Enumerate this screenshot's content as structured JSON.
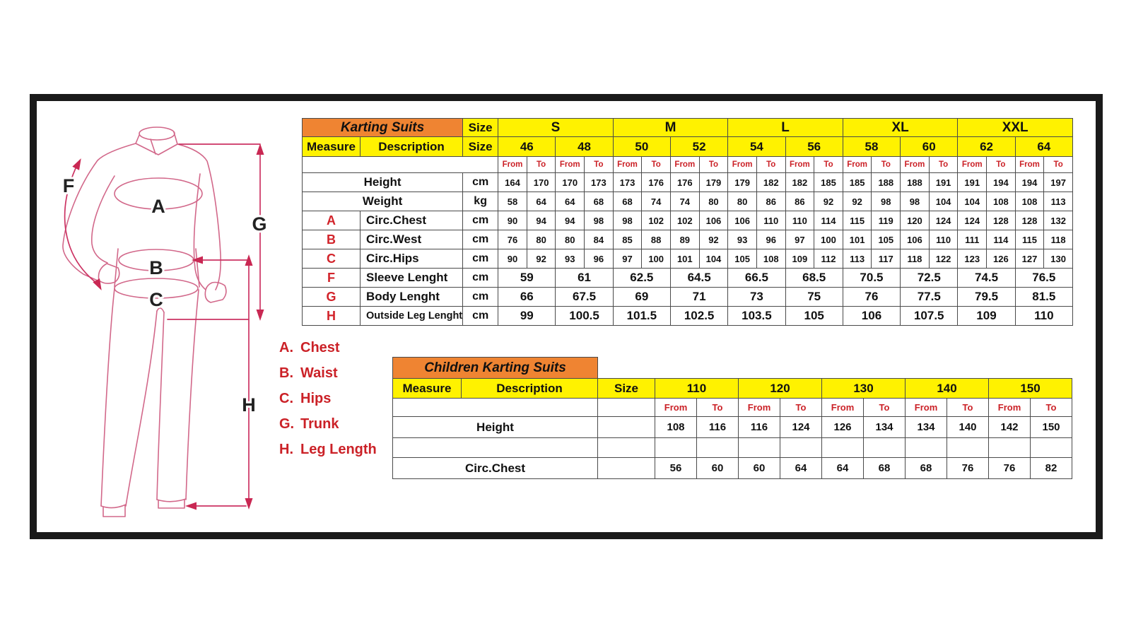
{
  "diagram": {
    "labels": {
      "chest": "A",
      "waist": "B",
      "hips": "C",
      "sleeve": "F",
      "trunk": "G",
      "leg": "H"
    },
    "legend": [
      {
        "key": "A.",
        "label": "Chest"
      },
      {
        "key": "B.",
        "label": "Waist"
      },
      {
        "key": "C.",
        "label": "Hips"
      },
      {
        "key": "G.",
        "label": "Trunk"
      },
      {
        "key": "H.",
        "label": "Leg Length"
      }
    ],
    "colors": {
      "suit_outline": "#d2688a",
      "measure_arrows": "#cc3363",
      "legend_text": "#cb2127"
    }
  },
  "adult_table": {
    "title": "Karting Suits",
    "size_row_label": "Size",
    "measure_label": "Measure",
    "description_label": "Description",
    "size_col_label": "Size",
    "from_label": "From",
    "to_label": "To",
    "size_groups": [
      {
        "label": "S",
        "sizes": [
          "46",
          "48"
        ]
      },
      {
        "label": "M",
        "sizes": [
          "50",
          "52"
        ]
      },
      {
        "label": "L",
        "sizes": [
          "54",
          "56"
        ]
      },
      {
        "label": "XL",
        "sizes": [
          "58",
          "60"
        ]
      },
      {
        "label": "XXL",
        "sizes": [
          "62",
          "64"
        ]
      }
    ],
    "rows": [
      {
        "letter": "",
        "label": "Height",
        "unit": "cm",
        "type": "range",
        "values": [
          164,
          170,
          170,
          173,
          173,
          176,
          176,
          179,
          179,
          182,
          182,
          185,
          185,
          188,
          188,
          191,
          191,
          194,
          194,
          197
        ]
      },
      {
        "letter": "",
        "label": "Weight",
        "unit": "kg",
        "type": "range",
        "values": [
          58,
          64,
          64,
          68,
          68,
          74,
          74,
          80,
          80,
          86,
          86,
          92,
          92,
          98,
          98,
          104,
          104,
          108,
          108,
          113
        ]
      },
      {
        "letter": "A",
        "label": "Circ.Chest",
        "unit": "cm",
        "type": "range",
        "values": [
          90,
          94,
          94,
          98,
          98,
          102,
          102,
          106,
          106,
          110,
          110,
          114,
          115,
          119,
          120,
          124,
          124,
          128,
          128,
          132
        ]
      },
      {
        "letter": "B",
        "label": "Circ.West",
        "unit": "cm",
        "type": "range",
        "values": [
          76,
          80,
          80,
          84,
          85,
          88,
          89,
          92,
          93,
          96,
          97,
          100,
          101,
          105,
          106,
          110,
          111,
          114,
          115,
          118
        ]
      },
      {
        "letter": "C",
        "label": "Circ.Hips",
        "unit": "cm",
        "type": "range",
        "values": [
          90,
          92,
          93,
          96,
          97,
          100,
          101,
          104,
          105,
          108,
          109,
          112,
          113,
          117,
          118,
          122,
          123,
          126,
          127,
          130
        ]
      },
      {
        "letter": "F",
        "label": "Sleeve Lenght",
        "unit": "cm",
        "type": "single",
        "values": [
          59,
          61,
          62.5,
          64.5,
          66.5,
          68.5,
          70.5,
          72.5,
          74.5,
          76.5
        ]
      },
      {
        "letter": "G",
        "label": "Body Lenght",
        "unit": "cm",
        "type": "single",
        "values": [
          66,
          67.5,
          69,
          71,
          73,
          75,
          76,
          77.5,
          79.5,
          81.5
        ]
      },
      {
        "letter": "H",
        "label": "Outside Leg Lenght",
        "unit": "cm",
        "type": "single",
        "values": [
          99,
          100.5,
          101.5,
          102.5,
          103.5,
          105,
          106,
          107.5,
          109,
          110
        ]
      }
    ],
    "colors": {
      "title_bg": "#ef8432",
      "header_bg": "#fff200",
      "fromto_text": "#cb2127",
      "letter_text": "#d2232a"
    }
  },
  "children_table": {
    "title": "Children Karting Suits",
    "measure_label": "Measure",
    "description_label": "Description",
    "size_col_label": "Size",
    "from_label": "From",
    "to_label": "To",
    "sizes": [
      "110",
      "120",
      "130",
      "140",
      "150"
    ],
    "rows": [
      {
        "label": "Height",
        "type": "range",
        "values": [
          108,
          116,
          116,
          124,
          126,
          134,
          134,
          140,
          142,
          150
        ]
      },
      {
        "label": "",
        "type": "empty",
        "values": []
      },
      {
        "label": "Circ.Chest",
        "type": "range",
        "values": [
          56,
          60,
          60,
          64,
          64,
          68,
          68,
          76,
          76,
          82
        ]
      }
    ]
  }
}
